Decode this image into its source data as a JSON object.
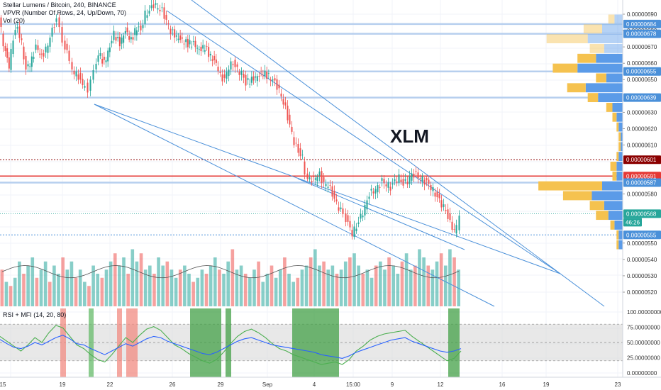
{
  "header": {
    "symbol_line": "Stellar Lumens / Bitcoin, 240, BINANCE",
    "vpvr_line": "VPVR (Number Of Rows, 24, Up/Down, 70)",
    "vol_line": "Vol (20)",
    "rsi_mfi_label": "RSI + MFI (14, 20, 80)"
  },
  "annotation": {
    "text": "XLM",
    "color": "#131722"
  },
  "colors": {
    "up": "#26a69a",
    "down": "#ef5350",
    "trend": "#4a90d9",
    "hline_blue": "#b7cfee",
    "hline_red": "#e53935",
    "hline_darkred": "#8b0000",
    "vp_up": "#5b9be8",
    "vp_down": "#f5c24f",
    "rsi": "#2962ff",
    "mfi": "#4caf50"
  },
  "chart_data": [
    {
      "type": "candlestick",
      "title": "Stellar Lumens / Bitcoin, 240, BINANCE",
      "xlabel": "",
      "ylabel": "",
      "x_tick_labels": [
        "15",
        "19",
        "22",
        "26",
        "29",
        "Sep",
        "4",
        "15:00",
        "9",
        "12",
        "16",
        "19",
        "23"
      ],
      "y_tick_labels": [
        "0.00000690",
        "0.00000680",
        "0.00000670",
        "0.00000660",
        "0.00000650",
        "0.00000630",
        "0.00000620",
        "0.00000610",
        "0.00000580",
        "0.00000550",
        "0.00000540",
        "0.00000530",
        "0.00000520"
      ],
      "price_levels": [
        {
          "value": "0.00000684",
          "kind": "support-resistance",
          "color": "#4a90d9"
        },
        {
          "value": "0.00000678",
          "kind": "support-resistance",
          "color": "#4a90d9"
        },
        {
          "value": "0.00000655",
          "kind": "support-resistance",
          "color": "#4a90d9"
        },
        {
          "value": "0.00000639",
          "kind": "support-resistance",
          "color": "#4a90d9"
        },
        {
          "value": "0.00000601",
          "kind": "dashed",
          "color": "#8b0000"
        },
        {
          "value": "0.00000591",
          "kind": "resistance",
          "color": "#e53935"
        },
        {
          "value": "0.00000587",
          "kind": "support-resistance",
          "color": "#4a90d9"
        },
        {
          "value": "0.00000568",
          "kind": "last-price",
          "color": "#26a69a"
        },
        {
          "value": "0.00000555",
          "kind": "dotted",
          "color": "#4a90d9"
        }
      ],
      "countdown": "46:26",
      "ylim": [
        5.15e-06,
        6.95e-06
      ],
      "close_path": [
        [
          0,
          688
        ],
        [
          6,
          672
        ],
        [
          14,
          658
        ],
        [
          20,
          676
        ],
        [
          26,
          682
        ],
        [
          32,
          672
        ],
        [
          38,
          656
        ],
        [
          46,
          662
        ],
        [
          52,
          670
        ],
        [
          60,
          664
        ],
        [
          66,
          668
        ],
        [
          72,
          676
        ],
        [
          78,
          684
        ],
        [
          82,
          686
        ],
        [
          86,
          680
        ],
        [
          90,
          672
        ],
        [
          96,
          668
        ],
        [
          100,
          660
        ],
        [
          106,
          654
        ],
        [
          112,
          652
        ],
        [
          118,
          646
        ],
        [
          122,
          648
        ],
        [
          126,
          642
        ],
        [
          130,
          648
        ],
        [
          134,
          654
        ],
        [
          140,
          666
        ],
        [
          148,
          660
        ],
        [
          156,
          670
        ],
        [
          162,
          678
        ],
        [
          170,
          672
        ],
        [
          178,
          680
        ],
        [
          186,
          674
        ],
        [
          194,
          682
        ],
        [
          200,
          680
        ],
        [
          206,
          690
        ],
        [
          212,
          692
        ],
        [
          218,
          696
        ],
        [
          224,
          694
        ],
        [
          230,
          692
        ],
        [
          236,
          686
        ],
        [
          242,
          680
        ],
        [
          250,
          676
        ],
        [
          258,
          674
        ],
        [
          266,
          672
        ],
        [
          274,
          672
        ],
        [
          282,
          668
        ],
        [
          290,
          670
        ],
        [
          298,
          664
        ],
        [
          306,
          660
        ],
        [
          312,
          652
        ],
        [
          318,
          650
        ],
        [
          324,
          658
        ],
        [
          330,
          660
        ],
        [
          336,
          656
        ],
        [
          342,
          654
        ],
        [
          348,
          648
        ],
        [
          356,
          650
        ],
        [
          364,
          652
        ],
        [
          372,
          654
        ],
        [
          380,
          652
        ],
        [
          386,
          650
        ],
        [
          392,
          646
        ],
        [
          398,
          640
        ],
        [
          404,
          632
        ],
        [
          410,
          622
        ],
        [
          416,
          612
        ],
        [
          422,
          606
        ],
        [
          428,
          602
        ],
        [
          432,
          594
        ],
        [
          438,
          588
        ],
        [
          446,
          590
        ],
        [
          452,
          592
        ],
        [
          458,
          586
        ],
        [
          464,
          586
        ],
        [
          470,
          580
        ],
        [
          476,
          574
        ],
        [
          482,
          570
        ],
        [
          486,
          568
        ],
        [
          492,
          562
        ],
        [
          498,
          556
        ],
        [
          504,
          560
        ],
        [
          510,
          566
        ],
        [
          516,
          572
        ],
        [
          522,
          580
        ],
        [
          528,
          582
        ],
        [
          534,
          584
        ],
        [
          540,
          588
        ],
        [
          546,
          586
        ],
        [
          552,
          584
        ],
        [
          558,
          588
        ],
        [
          564,
          590
        ],
        [
          570,
          586
        ],
        [
          576,
          588
        ],
        [
          582,
          592
        ],
        [
          588,
          592
        ],
        [
          594,
          590
        ],
        [
          600,
          588
        ],
        [
          606,
          586
        ],
        [
          612,
          582
        ],
        [
          618,
          578
        ],
        [
          624,
          574
        ],
        [
          630,
          570
        ],
        [
          636,
          562
        ],
        [
          642,
          558
        ],
        [
          646,
          560
        ],
        [
          650,
          568
        ]
      ],
      "trendlines": [
        {
          "from": "swing low near 20",
          "to": "projection near 21",
          "kind": "falling wedge lower"
        },
        {
          "from": "swing low near 20",
          "to": "projection near 22",
          "kind": "channel bottom"
        },
        {
          "from": "top near 26",
          "to": "projection near 20",
          "kind": "channel top"
        },
        {
          "from": "top near 26",
          "to": "projection near 22",
          "kind": "channel top 2"
        }
      ]
    },
    {
      "type": "bar",
      "title": "Vol (20)",
      "series": [
        {
          "name": "",
          "values": [
            9,
            6,
            5,
            7,
            11,
            8,
            10,
            12,
            7,
            9,
            11,
            6,
            10,
            8,
            12,
            9,
            11,
            7,
            9,
            6,
            5,
            10,
            8,
            7,
            9,
            11,
            13,
            10,
            12,
            8,
            14,
            11,
            13,
            9,
            10,
            8,
            12,
            10,
            11,
            9,
            7,
            9,
            10,
            8,
            6,
            7,
            9,
            8,
            10,
            12,
            9,
            8,
            11,
            14,
            9,
            10,
            8,
            7,
            9,
            11,
            6,
            8,
            10,
            7,
            9,
            12,
            8,
            6,
            7,
            9,
            10,
            12,
            14,
            10,
            11,
            9,
            10,
            8,
            9,
            11,
            12,
            13,
            10,
            8,
            9,
            7,
            10,
            11,
            9,
            12,
            10,
            8,
            11,
            13,
            9,
            10,
            14,
            12,
            10,
            9,
            11,
            13,
            10,
            14,
            12,
            9
          ]
        }
      ],
      "ylim": [
        0,
        16
      ]
    },
    {
      "type": "line",
      "title": "RSI + MFI (14, 20, 80)",
      "y_tick_labels": [
        "100.00000000",
        "75.00000000",
        "50.00000000",
        "25.00000000",
        "0.00000000"
      ],
      "ylim": [
        0,
        100
      ],
      "bands": [
        20,
        80
      ],
      "series": [
        {
          "name": "RSI",
          "values": [
            55,
            48,
            42,
            40,
            44,
            50,
            46,
            52,
            58,
            62,
            56,
            48,
            46,
            40,
            35,
            30,
            36,
            42,
            48,
            44,
            50,
            56,
            60,
            58,
            52,
            48,
            44,
            40,
            36,
            32,
            30,
            34,
            40,
            46,
            52,
            56,
            58,
            54,
            50,
            46,
            44,
            42,
            40,
            38,
            36,
            34,
            30,
            28,
            26,
            24,
            28,
            34,
            38,
            42,
            46,
            50,
            54,
            56,
            58,
            52,
            48,
            44,
            40,
            36,
            34,
            36,
            40
          ]
        },
        {
          "name": "MFI",
          "values": [
            60,
            52,
            44,
            36,
            46,
            58,
            50,
            66,
            78,
            74,
            60,
            46,
            40,
            30,
            22,
            18,
            30,
            44,
            58,
            50,
            62,
            72,
            76,
            70,
            58,
            46,
            40,
            32,
            26,
            20,
            16,
            22,
            34,
            48,
            60,
            68,
            72,
            66,
            58,
            48,
            40,
            36,
            30,
            26,
            22,
            18,
            14,
            16,
            18,
            14,
            22,
            36,
            44,
            54,
            60,
            64,
            66,
            68,
            70,
            60,
            52,
            44,
            36,
            28,
            20,
            24,
            36
          ]
        }
      ]
    },
    {
      "type": "bar",
      "title": "VPVR (Number Of Rows, 24, Up/Down, 70)",
      "series": [
        {
          "name": "Up",
          "values": [
            8,
            20,
            34,
            18,
            26,
            44,
            16,
            36,
            24,
            10,
            6,
            4,
            2,
            2,
            4,
            6,
            6,
            20,
            30,
            18,
            14,
            8,
            4,
            4
          ]
        },
        {
          "name": "Down",
          "values": [
            6,
            18,
            40,
            14,
            18,
            24,
            10,
            18,
            10,
            6,
            4,
            2,
            2,
            2,
            2,
            6,
            4,
            62,
            28,
            14,
            12,
            4,
            2,
            2
          ]
        }
      ]
    }
  ]
}
